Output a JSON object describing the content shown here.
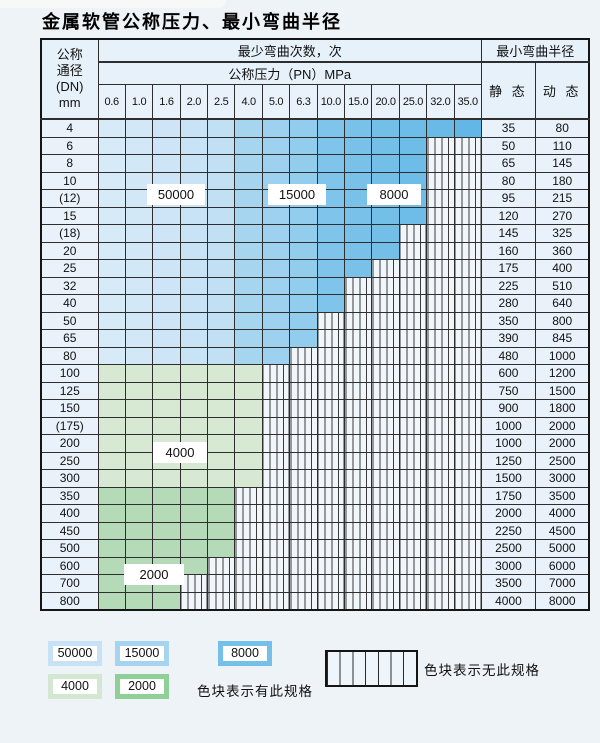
{
  "title": "金属软管公称压力、最小弯曲半径",
  "table": {
    "dn_header_lines": [
      "公称",
      "通径",
      "(DN)",
      "mm"
    ],
    "cycles_header": "最少弯曲次数，次",
    "pressure_header": "公称压力（PN）MPa",
    "radius_header": "最小弯曲半径",
    "static_header": "静 态",
    "dynamic_header": "动 态",
    "pressure_columns": [
      "0.6",
      "1.0",
      "1.6",
      "2.0",
      "2.5",
      "4.0",
      "5.0",
      "6.3",
      "10.0",
      "15.0",
      "20.0",
      "25.0",
      "32.0",
      "35.0"
    ],
    "rows": [
      {
        "dn": "4",
        "colored": 14,
        "scheme": "blue",
        "static": "35",
        "dynamic": "80"
      },
      {
        "dn": "6",
        "colored": 12,
        "scheme": "blue",
        "static": "50",
        "dynamic": "110"
      },
      {
        "dn": "8",
        "colored": 12,
        "scheme": "blue",
        "static": "65",
        "dynamic": "145"
      },
      {
        "dn": "10",
        "colored": 12,
        "scheme": "blue",
        "static": "80",
        "dynamic": "180"
      },
      {
        "dn": "(12)",
        "colored": 12,
        "scheme": "blue",
        "static": "95",
        "dynamic": "215"
      },
      {
        "dn": "15",
        "colored": 12,
        "scheme": "blue",
        "static": "120",
        "dynamic": "270"
      },
      {
        "dn": "(18)",
        "colored": 11,
        "scheme": "blue",
        "static": "145",
        "dynamic": "325"
      },
      {
        "dn": "20",
        "colored": 11,
        "scheme": "blue",
        "static": "160",
        "dynamic": "360"
      },
      {
        "dn": "25",
        "colored": 10,
        "scheme": "blue",
        "static": "175",
        "dynamic": "400"
      },
      {
        "dn": "32",
        "colored": 9,
        "scheme": "blue",
        "static": "225",
        "dynamic": "510"
      },
      {
        "dn": "40",
        "colored": 9,
        "scheme": "blue",
        "static": "280",
        "dynamic": "640"
      },
      {
        "dn": "50",
        "colored": 8,
        "scheme": "blue",
        "static": "350",
        "dynamic": "800"
      },
      {
        "dn": "65",
        "colored": 8,
        "scheme": "blue",
        "static": "390",
        "dynamic": "845"
      },
      {
        "dn": "80",
        "colored": 7,
        "scheme": "blue",
        "static": "480",
        "dynamic": "1000"
      },
      {
        "dn": "100",
        "colored": 6,
        "scheme": "green-light",
        "static": "600",
        "dynamic": "1200"
      },
      {
        "dn": "125",
        "colored": 6,
        "scheme": "green-light",
        "static": "750",
        "dynamic": "1500"
      },
      {
        "dn": "150",
        "colored": 6,
        "scheme": "green-light",
        "static": "900",
        "dynamic": "1800"
      },
      {
        "dn": "(175)",
        "colored": 6,
        "scheme": "green-light",
        "static": "1000",
        "dynamic": "2000"
      },
      {
        "dn": "200",
        "colored": 6,
        "scheme": "green-light",
        "static": "1000",
        "dynamic": "2000"
      },
      {
        "dn": "250",
        "colored": 6,
        "scheme": "green-light",
        "static": "1250",
        "dynamic": "2500"
      },
      {
        "dn": "300",
        "colored": 6,
        "scheme": "green-light",
        "static": "1500",
        "dynamic": "3000"
      },
      {
        "dn": "350",
        "colored": 5,
        "scheme": "green-dark",
        "static": "1750",
        "dynamic": "3500"
      },
      {
        "dn": "400",
        "colored": 5,
        "scheme": "green-dark",
        "static": "2000",
        "dynamic": "4000"
      },
      {
        "dn": "450",
        "colored": 5,
        "scheme": "green-dark",
        "static": "2250",
        "dynamic": "4500"
      },
      {
        "dn": "500",
        "colored": 5,
        "scheme": "green-dark",
        "static": "2500",
        "dynamic": "5000"
      },
      {
        "dn": "600",
        "colored": 4,
        "scheme": "green-dark",
        "static": "3000",
        "dynamic": "6000"
      },
      {
        "dn": "700",
        "colored": 3,
        "scheme": "green-dark",
        "static": "3500",
        "dynamic": "7000"
      },
      {
        "dn": "800",
        "colored": 3,
        "scheme": "green-dark",
        "static": "4000",
        "dynamic": "8000"
      }
    ],
    "cycle_labels": [
      {
        "value": "50000"
      },
      {
        "value": "15000"
      },
      {
        "value": "8000"
      },
      {
        "value": "4000"
      },
      {
        "value": "2000"
      }
    ]
  },
  "legend": {
    "items": [
      {
        "value": "50000",
        "color": "#c7e2f5"
      },
      {
        "value": "15000",
        "color": "#a6d4f0"
      },
      {
        "value": "8000",
        "color": "#74c0e8"
      },
      {
        "value": "4000",
        "color": "#d3e8d0"
      },
      {
        "value": "2000",
        "color": "#8ed096"
      }
    ],
    "has_spec_text": "色块表示有此规格",
    "no_spec_text": "色块表示无此规格"
  },
  "colors": {
    "grid": "#2e2e2e",
    "header_bg": "#e7f1f9",
    "cell_bg": "#e9f2fa",
    "hatch_bg": "#f1f6fa",
    "blue_bands": [
      {
        "from": [
          215,
          234,
          248
        ],
        "to": [
          194,
          224,
          244
        ],
        "range": [
          0,
          4
        ]
      },
      {
        "from": [
          166,
          213,
          240
        ],
        "to": [
          147,
          205,
          238
        ],
        "range": [
          5,
          7
        ]
      },
      {
        "from": [
          127,
          196,
          234
        ],
        "to": [
          99,
          183,
          230
        ],
        "range": [
          8,
          13
        ]
      }
    ],
    "green_light": "#d7e9d3",
    "green_dark": "#b4dab8"
  }
}
